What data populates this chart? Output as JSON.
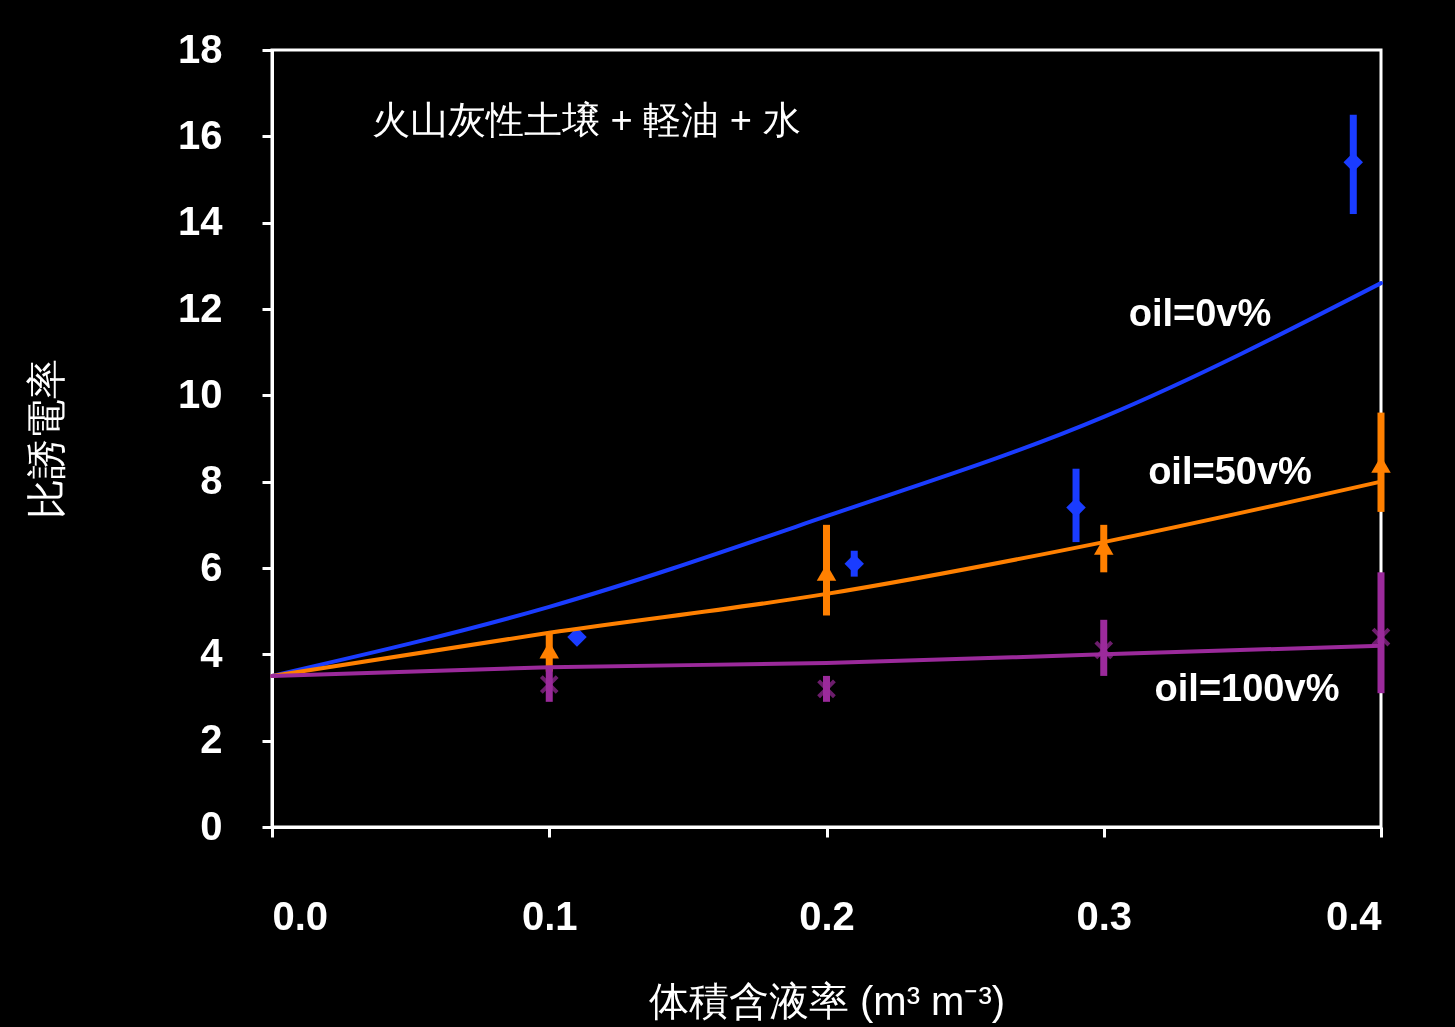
{
  "chart_data": {
    "type": "scatter",
    "xlabel": "体積含液率  (m³ m⁻³)",
    "ylabel": "比誘電率",
    "xlim": [
      0,
      0.4
    ],
    "xticks": [
      {
        "value": 0,
        "label": "0.0"
      },
      0.1,
      0.2,
      0.3,
      0.4
    ],
    "ylim": [
      0,
      18
    ],
    "yticks": [
      0,
      2,
      4,
      6,
      8,
      10,
      12,
      14,
      16,
      18
    ],
    "grid": false,
    "series": [
      {
        "marker": "diamond",
        "color": "#1a3cff",
        "x": [
          0.11,
          0.21,
          0.29,
          0.39
        ],
        "values": [
          4.4,
          6.1,
          7.4,
          15.4
        ],
        "errors": [
          null,
          [
            5.8,
            6.4
          ],
          [
            6.6,
            8.3
          ],
          [
            14.2,
            16.5
          ]
        ]
      },
      {
        "marker": "triangle",
        "color": "#ff8000",
        "x": [
          0.1,
          0.2,
          0.3,
          0.4
        ],
        "values": [
          4.1,
          5.9,
          6.5,
          8.4
        ],
        "errors": [
          [
            3.6,
            4.5
          ],
          [
            4.9,
            7.0
          ],
          [
            5.9,
            7.0
          ],
          [
            7.3,
            9.6
          ]
        ]
      },
      {
        "marker": "cross",
        "color": "#9b2a9b",
        "x": [
          0.1,
          0.2,
          0.3,
          0.4
        ],
        "values": [
          3.3,
          3.2,
          4.1,
          4.4
        ],
        "errors": [
          [
            2.9,
            3.7
          ],
          [
            2.9,
            3.5
          ],
          [
            3.5,
            4.8
          ],
          [
            3.1,
            5.9
          ]
        ]
      },
      {
        "type": "line",
        "color": "#1a3cff",
        "x": [
          0,
          0.1,
          0.2,
          0.3,
          0.4
        ],
        "values": [
          3.5,
          5.1,
          7.2,
          9.5,
          12.6
        ]
      },
      {
        "type": "line",
        "color": "#ff8000",
        "x": [
          0,
          0.1,
          0.2,
          0.3,
          0.4
        ],
        "values": [
          3.5,
          4.5,
          5.4,
          6.6,
          8.0
        ]
      },
      {
        "type": "line",
        "color": "#9b2a9b",
        "x": [
          0,
          0.1,
          0.2,
          0.3,
          0.4
        ],
        "values": [
          3.5,
          3.7,
          3.8,
          4.0,
          4.2
        ]
      }
    ],
    "annotations": [
      "火山灰性土壌 + 軽油 + 水",
      "oil=0v%",
      "oil=50v%",
      "oil=100v%"
    ]
  }
}
